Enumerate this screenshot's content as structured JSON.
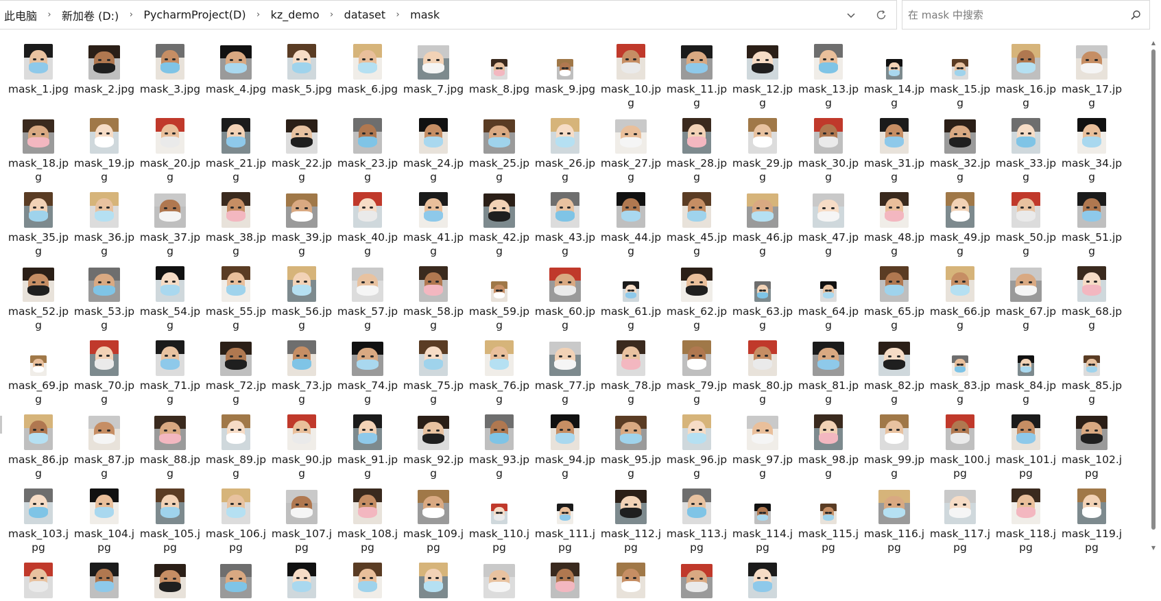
{
  "breadcrumb": [
    "此电脑",
    "新加卷 (D:)",
    "PycharmProject(D)",
    "kz_demo",
    "dataset",
    "mask"
  ],
  "address_actions": {
    "history_icon": "chevron-down-icon",
    "refresh_icon": "refresh-icon"
  },
  "search": {
    "placeholder": "在 mask 中搜索",
    "value": "",
    "icon": "search-icon"
  },
  "files": [
    {
      "name": "mask_1.jpg"
    },
    {
      "name": "mask_2.jpg"
    },
    {
      "name": "mask_3.jpg"
    },
    {
      "name": "mask_4.jpg"
    },
    {
      "name": "mask_5.jpg"
    },
    {
      "name": "mask_6.jpg"
    },
    {
      "name": "mask_7.jpg"
    },
    {
      "name": "mask_8.jpg"
    },
    {
      "name": "mask_9.jpg"
    },
    {
      "name": "mask_10.jpg"
    },
    {
      "name": "mask_11.jpg"
    },
    {
      "name": "mask_12.jpg"
    },
    {
      "name": "mask_13.jpg"
    },
    {
      "name": "mask_14.jpg"
    },
    {
      "name": "mask_15.jpg"
    },
    {
      "name": "mask_16.jpg"
    },
    {
      "name": "mask_17.jpg"
    },
    {
      "name": "mask_18.jpg"
    },
    {
      "name": "mask_19.jpg"
    },
    {
      "name": "mask_20.jpg"
    },
    {
      "name": "mask_21.jpg"
    },
    {
      "name": "mask_22.jpg"
    },
    {
      "name": "mask_23.jpg"
    },
    {
      "name": "mask_24.jpg"
    },
    {
      "name": "mask_25.jpg"
    },
    {
      "name": "mask_26.jpg"
    },
    {
      "name": "mask_27.jpg"
    },
    {
      "name": "mask_28.jpg"
    },
    {
      "name": "mask_29.jpg"
    },
    {
      "name": "mask_30.jpg"
    },
    {
      "name": "mask_31.jpg"
    },
    {
      "name": "mask_32.jpg"
    },
    {
      "name": "mask_33.jpg"
    },
    {
      "name": "mask_34.jpg"
    },
    {
      "name": "mask_35.jpg"
    },
    {
      "name": "mask_36.jpg"
    },
    {
      "name": "mask_37.jpg"
    },
    {
      "name": "mask_38.jpg"
    },
    {
      "name": "mask_39.jpg"
    },
    {
      "name": "mask_40.jpg"
    },
    {
      "name": "mask_41.jpg"
    },
    {
      "name": "mask_42.jpg"
    },
    {
      "name": "mask_43.jpg"
    },
    {
      "name": "mask_44.jpg"
    },
    {
      "name": "mask_45.jpg"
    },
    {
      "name": "mask_46.jpg"
    },
    {
      "name": "mask_47.jpg"
    },
    {
      "name": "mask_48.jpg"
    },
    {
      "name": "mask_49.jpg"
    },
    {
      "name": "mask_50.jpg"
    },
    {
      "name": "mask_51.jpg"
    },
    {
      "name": "mask_52.jpg"
    },
    {
      "name": "mask_53.jpg"
    },
    {
      "name": "mask_54.jpg"
    },
    {
      "name": "mask_55.jpg"
    },
    {
      "name": "mask_56.jpg"
    },
    {
      "name": "mask_57.jpg"
    },
    {
      "name": "mask_58.jpg"
    },
    {
      "name": "mask_59.jpg"
    },
    {
      "name": "mask_60.jpg"
    },
    {
      "name": "mask_61.jpg"
    },
    {
      "name": "mask_62.jpg"
    },
    {
      "name": "mask_63.jpg"
    },
    {
      "name": "mask_64.jpg"
    },
    {
      "name": "mask_65.jpg"
    },
    {
      "name": "mask_66.jpg"
    },
    {
      "name": "mask_67.jpg"
    },
    {
      "name": "mask_68.jpg"
    },
    {
      "name": "mask_69.jpg"
    },
    {
      "name": "mask_70.jpg"
    },
    {
      "name": "mask_71.jpg"
    },
    {
      "name": "mask_72.jpg"
    },
    {
      "name": "mask_73.jpg"
    },
    {
      "name": "mask_74.jpg"
    },
    {
      "name": "mask_75.jpg"
    },
    {
      "name": "mask_76.jpg"
    },
    {
      "name": "mask_77.jpg"
    },
    {
      "name": "mask_78.jpg"
    },
    {
      "name": "mask_79.jpg"
    },
    {
      "name": "mask_80.jpg"
    },
    {
      "name": "mask_81.jpg"
    },
    {
      "name": "mask_82.jpg"
    },
    {
      "name": "mask_83.jpg"
    },
    {
      "name": "mask_84.jpg"
    },
    {
      "name": "mask_85.jpg"
    },
    {
      "name": "mask_86.jpg"
    },
    {
      "name": "mask_87.jpg"
    },
    {
      "name": "mask_88.jpg"
    },
    {
      "name": "mask_89.jpg"
    },
    {
      "name": "mask_90.jpg"
    },
    {
      "name": "mask_91.jpg"
    },
    {
      "name": "mask_92.jpg"
    },
    {
      "name": "mask_93.jpg"
    },
    {
      "name": "mask_94.jpg"
    },
    {
      "name": "mask_95.jpg"
    },
    {
      "name": "mask_96.jpg"
    },
    {
      "name": "mask_97.jpg"
    },
    {
      "name": "mask_98.jpg"
    },
    {
      "name": "mask_99.jpg"
    },
    {
      "name": "mask_100.jpg"
    },
    {
      "name": "mask_101.jpg"
    },
    {
      "name": "mask_102.jpg"
    },
    {
      "name": "mask_103.jpg"
    },
    {
      "name": "mask_104.jpg"
    },
    {
      "name": "mask_105.jpg"
    },
    {
      "name": "mask_106.jpg"
    },
    {
      "name": "mask_107.jpg"
    },
    {
      "name": "mask_108.jpg"
    },
    {
      "name": "mask_109.jpg"
    },
    {
      "name": "mask_110.jpg"
    },
    {
      "name": "mask_111.jpg"
    },
    {
      "name": "mask_112.jpg"
    },
    {
      "name": "mask_113.jpg"
    },
    {
      "name": "mask_114.jpg"
    },
    {
      "name": "mask_115.jpg"
    },
    {
      "name": "mask_116.jpg"
    },
    {
      "name": "mask_117.jpg"
    },
    {
      "name": "mask_118.jpg"
    },
    {
      "name": "mask_119.jpg"
    },
    {
      "name": ""
    },
    {
      "name": ""
    },
    {
      "name": ""
    },
    {
      "name": ""
    },
    {
      "name": ""
    },
    {
      "name": ""
    },
    {
      "name": ""
    },
    {
      "name": ""
    },
    {
      "name": ""
    },
    {
      "name": ""
    },
    {
      "name": ""
    },
    {
      "name": ""
    }
  ],
  "colors": {
    "mask_palette": [
      "#8ec9ea",
      "#a9d8ef",
      "#f5f5f5",
      "#eaeaea",
      "#7fc4e6",
      "#b5e0f2",
      "#ffffff",
      "#1f1f1f",
      "#9fd3ec",
      "#f3b7c0"
    ],
    "hair_palette": [
      "#1b1b1b",
      "#3a2a1e",
      "#5a3c24",
      "#2b1f17",
      "#a07848",
      "#d6b47a",
      "#6e6e6e",
      "#c0392b",
      "#c9c9c9",
      "#111111"
    ],
    "skin_palette": [
      "#e8c2a0",
      "#d9a982",
      "#f2d2b6",
      "#c68e64",
      "#e9bf9b",
      "#b07850",
      "#f6dcc6"
    ]
  },
  "scrollbar": {
    "up_icon": "scroll-up-icon",
    "down_icon": "scroll-down-icon"
  }
}
